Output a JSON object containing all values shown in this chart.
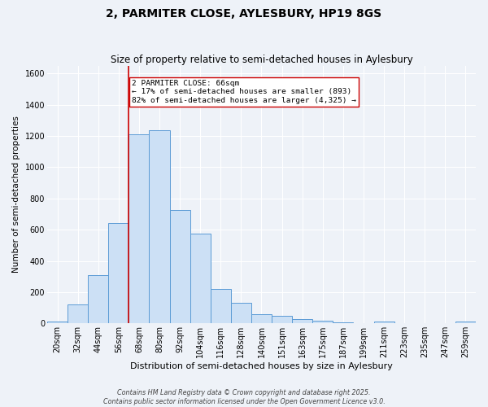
{
  "title1": "2, PARMITER CLOSE, AYLESBURY, HP19 8GS",
  "title2": "Size of property relative to semi-detached houses in Aylesbury",
  "xlabel": "Distribution of semi-detached houses by size in Aylesbury",
  "ylabel": "Number of semi-detached properties",
  "footnote1": "Contains HM Land Registry data © Crown copyright and database right 2025.",
  "footnote2": "Contains public sector information licensed under the Open Government Licence v3.0.",
  "bin_labels": [
    "20sqm",
    "32sqm",
    "44sqm",
    "56sqm",
    "68sqm",
    "80sqm",
    "92sqm",
    "104sqm",
    "116sqm",
    "128sqm",
    "140sqm",
    "151sqm",
    "163sqm",
    "175sqm",
    "187sqm",
    "199sqm",
    "211sqm",
    "223sqm",
    "235sqm",
    "247sqm",
    "259sqm"
  ],
  "bar_values": [
    10,
    120,
    310,
    645,
    1210,
    1235,
    725,
    575,
    220,
    130,
    60,
    48,
    30,
    18,
    8,
    0,
    10,
    0,
    0,
    0,
    10
  ],
  "bar_color": "#cce0f5",
  "bar_edge_color": "#5b9bd5",
  "vline_color": "#cc0000",
  "annotation_text": "2 PARMITER CLOSE: 66sqm\n← 17% of semi-detached houses are smaller (893)\n82% of semi-detached houses are larger (4,325) →",
  "annotation_box_color": "white",
  "annotation_box_edge": "#cc0000",
  "ylim": [
    0,
    1650
  ],
  "yticks": [
    0,
    200,
    400,
    600,
    800,
    1000,
    1200,
    1400,
    1600
  ],
  "background_color": "#eef2f8",
  "grid_color": "#ffffff",
  "title1_fontsize": 10,
  "title2_fontsize": 8.5,
  "xlabel_fontsize": 8,
  "ylabel_fontsize": 7.5,
  "tick_fontsize": 7,
  "annotation_fontsize": 6.8,
  "footnote_fontsize": 5.8
}
